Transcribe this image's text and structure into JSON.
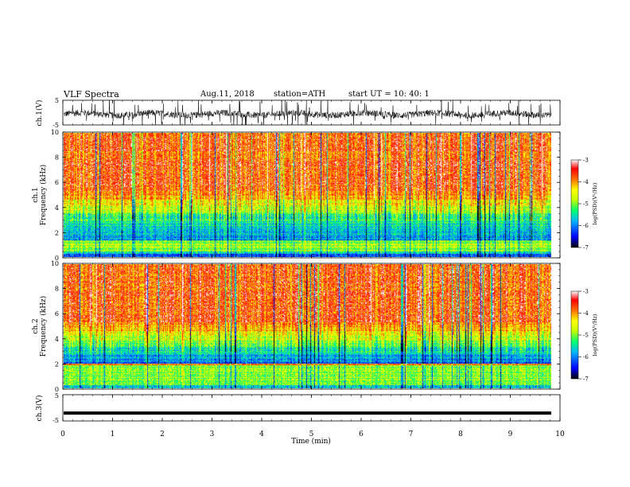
{
  "header": {
    "title": "VLF  Spectra",
    "date": "Aug.11, 2018",
    "station": "station=ATH",
    "start_ut": "start  UT  =    10: 40: 1"
  },
  "chart_data": [
    {
      "type": "line",
      "panel": "ch1-waveform",
      "ylabel": "ch.1(V)",
      "ylim": [
        -5,
        5
      ],
      "yticks": [
        "5",
        "-5"
      ],
      "xlim": [
        0,
        10
      ],
      "note_series": "dense noisy waveform around approximately -0.5 V with spikes to the limits"
    },
    {
      "type": "heatmap",
      "panel": "ch1-spectrogram",
      "ylabel": "ch.1\nFrequency (kHz)",
      "ylabel_line1": "ch.1",
      "ylabel_line2": "Frequency (kHz)",
      "ylim": [
        0,
        10
      ],
      "yticks": [
        "0",
        "2",
        "4",
        "6",
        "8",
        "10"
      ],
      "xlim": [
        0,
        10
      ],
      "colorbar": {
        "label": "log(PSD)(V²/Hz)",
        "range": [
          -7,
          -3
        ],
        "ticks": [
          "-3",
          "-4",
          "-5",
          "-6",
          "-7"
        ]
      }
    },
    {
      "type": "heatmap",
      "panel": "ch2-spectrogram",
      "ylabel_line1": "ch.2",
      "ylabel_line2": "Frequency (kHz)",
      "ylim": [
        0,
        10
      ],
      "yticks": [
        "0",
        "2",
        "4",
        "6",
        "8",
        "10"
      ],
      "xlim": [
        0,
        10
      ],
      "colorbar": {
        "label": "log(PSD)(V²/Hz)",
        "range": [
          -7,
          -3
        ],
        "ticks": [
          "-3",
          "-4",
          "-5",
          "-6",
          "-7"
        ]
      }
    },
    {
      "type": "line",
      "panel": "ch3-waveform",
      "ylabel": "ch.3(V)",
      "ylim": [
        -5,
        5
      ],
      "yticks": [
        "5",
        "-5"
      ],
      "xlim": [
        0,
        10
      ],
      "approx_level": -2.0
    }
  ],
  "xaxis": {
    "label": "Time  (min)",
    "ticks": [
      "0",
      "1",
      "2",
      "3",
      "4",
      "5",
      "6",
      "7",
      "8",
      "9",
      "10"
    ],
    "range": [
      0,
      10
    ]
  },
  "colors": {
    "psd_scale": [
      "#000000",
      "#0000ff",
      "#00b0ff",
      "#00ff80",
      "#c0ff00",
      "#ffff00",
      "#ff8000",
      "#ff0000",
      "#ffffff"
    ]
  }
}
